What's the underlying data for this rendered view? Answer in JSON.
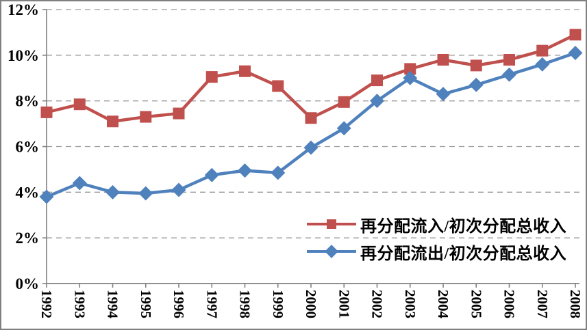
{
  "chart_data": {
    "type": "line",
    "title": "",
    "xlabel": "",
    "ylabel": "",
    "categories": [
      "1992",
      "1993",
      "1994",
      "1995",
      "1996",
      "1997",
      "1998",
      "1999",
      "2000",
      "2001",
      "2002",
      "2003",
      "2004",
      "2005",
      "2006",
      "2007",
      "2008"
    ],
    "series": [
      {
        "name": "再分配流入/初次分配总收入",
        "key": "inflow",
        "color": "#C0504D",
        "marker": "square",
        "values": [
          7.5,
          7.85,
          7.1,
          7.3,
          7.45,
          9.05,
          9.3,
          8.65,
          7.25,
          7.95,
          8.9,
          9.4,
          9.8,
          9.55,
          9.8,
          10.2,
          10.9
        ]
      },
      {
        "name": "再分配流出/初次分配总收入",
        "key": "outflow",
        "color": "#4F81BD",
        "marker": "diamond",
        "values": [
          3.8,
          4.4,
          4.0,
          3.95,
          4.1,
          4.75,
          4.95,
          4.85,
          5.95,
          6.8,
          8.0,
          9.0,
          8.3,
          8.7,
          9.15,
          9.6,
          10.1
        ]
      }
    ],
    "ylim": [
      0,
      12
    ],
    "ytick_step": 2,
    "ytick_labels": [
      "0%",
      "2%",
      "4%",
      "6%",
      "8%",
      "10%",
      "12%"
    ],
    "grid": "horizontal-dashed",
    "legend_position": "inside-lower-right",
    "colors": {
      "axis": "#808080",
      "grid": "#999999",
      "frame": "#808080",
      "background": "#FFFFFF",
      "text": "#000000"
    }
  }
}
